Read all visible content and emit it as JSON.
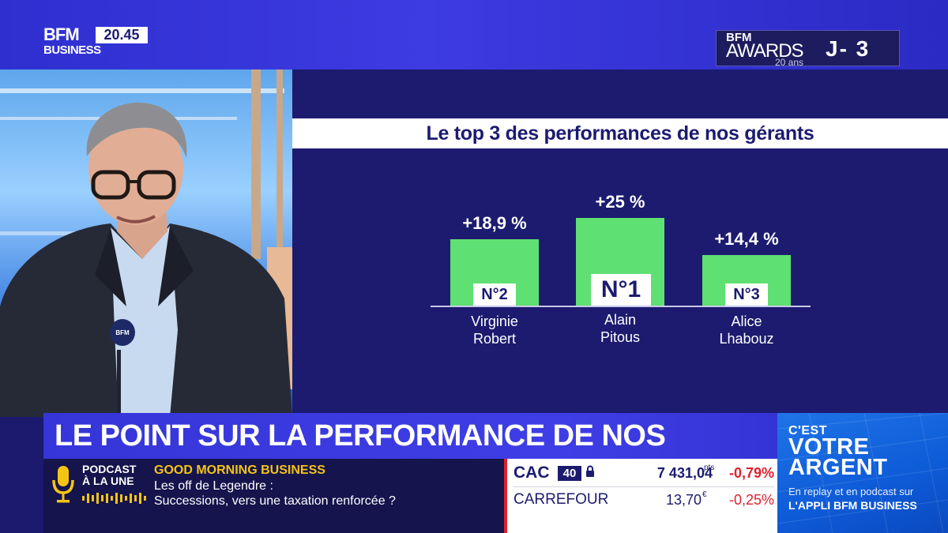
{
  "channel": {
    "logo_top": "BFM",
    "logo_bottom": "BUSINESS",
    "clock": "20.45"
  },
  "awards": {
    "brand": "BFM",
    "word": "AWARDS",
    "edition": "20 ans",
    "countdown": "J-  3"
  },
  "chart": {
    "title": "Le top 3 des performances de nos gérants",
    "bars": [
      {
        "rank": "N°2",
        "first": "Virginie",
        "last": "Robert",
        "value_label": "+18,9 %"
      },
      {
        "rank": "N°1",
        "first": "Alain",
        "last": "Pitous",
        "value_label": "+25 %"
      },
      {
        "rank": "N°3",
        "first": "Alice",
        "last": "Lhabouz",
        "value_label": "+14,4 %"
      }
    ]
  },
  "chart_data": {
    "type": "bar",
    "title": "Le top 3 des performances de nos gérants",
    "categories": [
      "Virginie Robert",
      "Alain Pitous",
      "Alice Lhabouz"
    ],
    "values": [
      18.9,
      25,
      14.4
    ],
    "ranks": [
      "N°2",
      "N°1",
      "N°3"
    ],
    "unit": "%",
    "xlabel": "",
    "ylabel": "",
    "ylim": [
      0,
      25
    ],
    "grid": false
  },
  "headline": "LE POINT SUR LA PERFORMANCE DE NOS GÉRANTS",
  "podcast": {
    "label_line1": "PODCAST",
    "label_line2": "À LA UNE",
    "show": "GOOD MORNING BUSINESS",
    "line1": "Les off de Legendre :",
    "line2": "Successions, vers une taxation renforcée ?"
  },
  "ticker": {
    "index_name": "CAC",
    "index_number": "40",
    "index_value": "7 431,04",
    "index_unit": "pts",
    "index_change": "-0,79%",
    "stock_name": "CARREFOUR",
    "stock_value": "13,70",
    "stock_unit": "€",
    "stock_change": "-0,25%"
  },
  "promo": {
    "line1": "C'EST",
    "line2": "VOTRE",
    "line3": "ARGENT",
    "sub1": "En replay et en podcast sur",
    "sub2": "L'APPLI BFM BUSINESS"
  },
  "colors": {
    "bar": "#5fe072",
    "navy": "#1c1b70",
    "headline_blue": "#3535d9",
    "podcast_yellow": "#f4c414",
    "negative_red": "#e0202f"
  }
}
